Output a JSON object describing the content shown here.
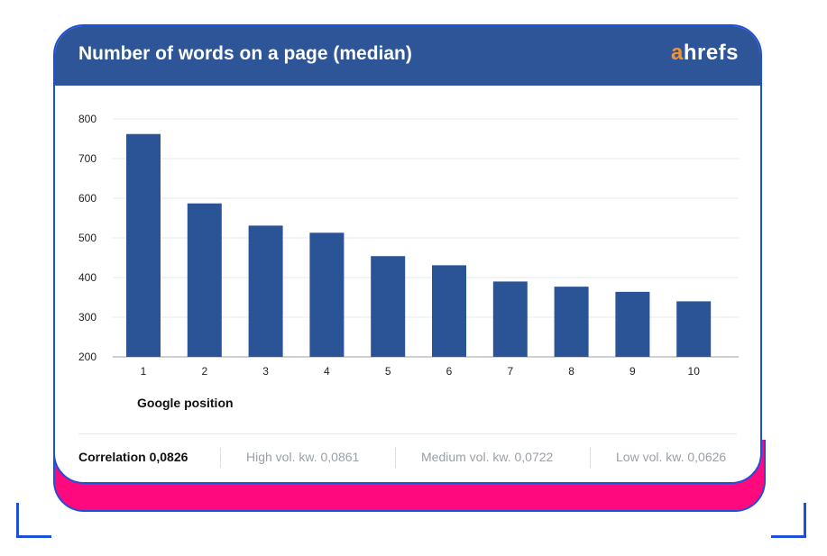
{
  "header": {
    "title": "Number of words on a page (median)",
    "brand_a": "a",
    "brand_rest": "hrefs"
  },
  "colors": {
    "header_bg": "#2d5597",
    "bar": "#2a5496",
    "brand_accent": "#f5922f",
    "pink_accent": "#ff0a7e",
    "outline": "#1d4fd8"
  },
  "chart_data": {
    "type": "bar",
    "title": "Number of words on a page (median)",
    "xlabel": "Google position",
    "ylabel": "",
    "categories": [
      "1",
      "2",
      "3",
      "4",
      "5",
      "6",
      "7",
      "8",
      "9",
      "10"
    ],
    "values": [
      762,
      587,
      531,
      513,
      454,
      431,
      390,
      377,
      364,
      340
    ],
    "ylim": [
      200,
      800
    ],
    "yticks": [
      200,
      300,
      400,
      500,
      600,
      700,
      800
    ],
    "grid": true,
    "legend": "none"
  },
  "footer": {
    "correlation": "Correlation 0,0826",
    "high_vol": "High vol. kw. 0,0861",
    "medium_vol": "Medium vol. kw. 0,0722",
    "low_vol": "Low vol. kw. 0,0626"
  }
}
